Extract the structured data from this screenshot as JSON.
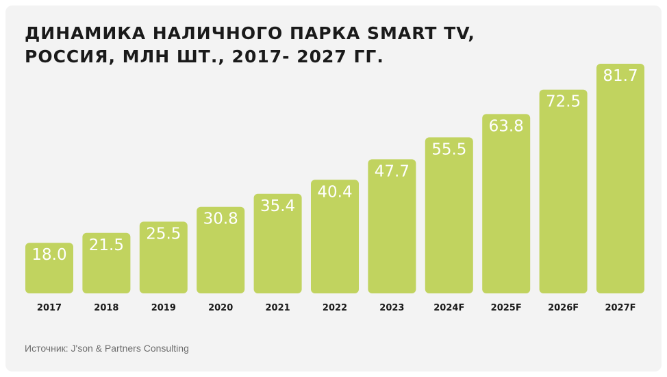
{
  "title": {
    "line1": "ДИНАМИКА НАЛИЧНОГО ПАРКА SMART TV,",
    "line2": "РОССИЯ, МЛН ШТ., 2017- 2027 ГГ."
  },
  "source": "Источник: J'son & Partners Consulting",
  "colors": {
    "bar": "#c1d35f",
    "background": "#f3f3f3",
    "label": "#ffffff",
    "axis_text": "#1a1a1a"
  },
  "chart_data": {
    "type": "bar",
    "title": "ДИНАМИКА НАЛИЧНОГО ПАРКА SMART TV, РОССИЯ, МЛН ШТ., 2017- 2027 ГГ.",
    "xlabel": "",
    "ylabel": "",
    "categories": [
      "2017",
      "2018",
      "2019",
      "2020",
      "2021",
      "2022",
      "2023",
      "2024F",
      "2025F",
      "2026F",
      "2027F"
    ],
    "values": [
      18.0,
      21.5,
      25.5,
      30.8,
      35.4,
      40.4,
      47.7,
      55.5,
      63.8,
      72.5,
      81.7
    ],
    "value_labels": [
      "18.0",
      "21.5",
      "25.5",
      "30.8",
      "35.4",
      "40.4",
      "47.7",
      "55.5",
      "63.8",
      "72.5",
      "81.7"
    ],
    "ylim": [
      0,
      81.7
    ],
    "grid": false,
    "legend": "none"
  }
}
